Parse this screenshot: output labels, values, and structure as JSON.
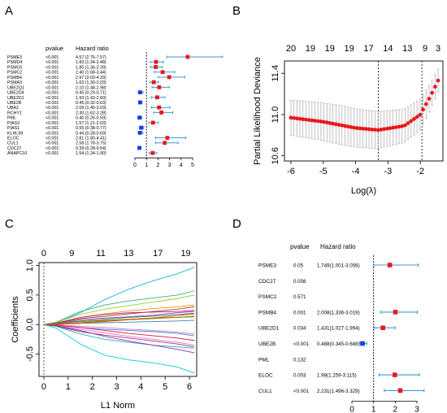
{
  "chart_data": [
    {
      "panel": "A",
      "type": "forest",
      "col_headers": [
        "pvalue",
        "Hazard ratio"
      ],
      "xticks": [
        "0",
        "1",
        "2",
        "3",
        "4",
        "5"
      ],
      "xlim": [
        0,
        5
      ],
      "reference_line": 1,
      "rows": [
        {
          "gene": "PSME3",
          "p": "<0.001",
          "hr_text": "4.57 (2.76-7.57)",
          "hr": 4.57,
          "lo": 2.76,
          "hi": 7.57
        },
        {
          "gene": "PSMD4",
          "p": "<0.001",
          "hr_text": "1.83 (1.34-2.48)",
          "hr": 1.83,
          "lo": 1.34,
          "hi": 2.48
        },
        {
          "gene": "PSMC6",
          "p": "<0.001",
          "hr_text": "1.80 (1.36-2.39)",
          "hr": 1.8,
          "lo": 1.36,
          "hi": 2.39
        },
        {
          "gene": "PSMC2",
          "p": "<0.001",
          "hr_text": "2.40 (1.68-3.44)",
          "hr": 2.4,
          "lo": 1.68,
          "hi": 3.44
        },
        {
          "gene": "PSMB4",
          "p": "<0.001",
          "hr_text": "2.97 (2.03-4.33)",
          "hr": 2.97,
          "lo": 2.03,
          "hi": 4.33
        },
        {
          "gene": "PSMA3",
          "p": "<0.001",
          "hr_text": "1.63 (1.30-2.03)",
          "hr": 1.63,
          "lo": 1.3,
          "hi": 2.03
        },
        {
          "gene": "UBE2Q1",
          "p": "<0.001",
          "hr_text": "2.10 (1.48-2.98)",
          "hr": 2.1,
          "lo": 1.48,
          "hi": 2.98
        },
        {
          "gene": "UBE2D4",
          "p": "<0.001",
          "hr_text": "0.45 (0.29-0.71)",
          "hr": 0.45,
          "lo": 0.29,
          "hi": 0.71
        },
        {
          "gene": "UBE2D1",
          "p": "<0.001",
          "hr_text": "1.93 (1.43-2.60)",
          "hr": 1.93,
          "lo": 1.43,
          "hi": 2.6
        },
        {
          "gene": "UBE2B",
          "p": "<0.001",
          "hr_text": "0.45 (0.32-0.63)",
          "hr": 0.45,
          "lo": 0.32,
          "hi": 0.63
        },
        {
          "gene": "UBA2",
          "p": "<0.001",
          "hr_text": "2.09 (1.45-3.03)",
          "hr": 2.09,
          "lo": 1.45,
          "hi": 3.03
        },
        {
          "gene": "RCHY1",
          "p": "<0.001",
          "hr_text": "2.30 (1.62-3.28)",
          "hr": 2.3,
          "lo": 1.62,
          "hi": 3.28
        },
        {
          "gene": "PML",
          "p": "<0.001",
          "hr_text": "0.40 (0.26-0.59)",
          "hr": 0.4,
          "lo": 0.26,
          "hi": 0.59
        },
        {
          "gene": "PIAS3",
          "p": "<0.001",
          "hr_text": "1.57 (1.21-2.03)",
          "hr": 1.57,
          "lo": 1.21,
          "hi": 2.03
        },
        {
          "gene": "PIAS1",
          "p": "<0.001",
          "hr_text": "0.55 (0.38-0.77)",
          "hr": 0.55,
          "lo": 0.38,
          "hi": 0.77
        },
        {
          "gene": "KLHL99",
          "p": "<0.001",
          "hr_text": "0.44 (0.28-0.69)",
          "hr": 0.44,
          "lo": 0.28,
          "hi": 0.69
        },
        {
          "gene": "ELOC",
          "p": "<0.001",
          "hr_text": "2.81 (1.80-4.41)",
          "hr": 2.81,
          "lo": 1.8,
          "hi": 4.41
        },
        {
          "gene": "CUL1",
          "p": "<0.001",
          "hr_text": "2.58 (1.78-3.75)",
          "hr": 2.58,
          "lo": 1.78,
          "hi": 3.75
        },
        {
          "gene": "CDC27",
          "p": "<0.001",
          "hr_text": "0.39 (0.28-0.54)",
          "hr": 0.39,
          "lo": 0.28,
          "hi": 0.54
        },
        {
          "gene": "ANAPC10",
          "p": "<0.001",
          "hr_text": "1.54 (1.24-1.90)",
          "hr": 1.54,
          "lo": 1.24,
          "hi": 1.9
        }
      ],
      "colors": {
        "risk": "#e8191f",
        "protective": "#1a3ce0",
        "ci": "#3a9ad9"
      }
    },
    {
      "panel": "B",
      "type": "scatter",
      "xlabel": "Log(λ)",
      "ylabel": "Partial Likelihood Deviance",
      "xlim": [
        -6.2,
        -1.3
      ],
      "ylim": [
        10.55,
        11.52
      ],
      "xticks": [
        "-6",
        "-5",
        "-4",
        "-3",
        "-2"
      ],
      "xtick_values": [
        -6,
        -5,
        -4,
        -3,
        -2
      ],
      "yticks": [
        "10.6",
        "11.0",
        "11.4"
      ],
      "ytick_values": [
        10.6,
        11.0,
        11.4
      ],
      "top_ticks": [
        "20",
        "19",
        "19",
        "19",
        "17",
        "14",
        "13",
        "9",
        "3"
      ],
      "top_tick_values": [
        -6,
        -5.4,
        -4.8,
        -4.2,
        -3.6,
        -3.0,
        -2.4,
        -1.85,
        -1.45
      ],
      "lambda_min": -3.3,
      "lambda_1se": -1.95,
      "curve": {
        "x_start": -6.0,
        "x_end": -1.45,
        "points": 50,
        "anchors": [
          [
            -6.0,
            10.97
          ],
          [
            -5.0,
            10.93
          ],
          [
            -4.0,
            10.87
          ],
          [
            -3.3,
            10.85
          ],
          [
            -2.5,
            10.89
          ],
          [
            -2.0,
            11.0
          ],
          [
            -1.7,
            11.17
          ],
          [
            -1.45,
            11.33
          ]
        ]
      },
      "errorbar": {
        "anchors": [
          [
            -6.0,
            0.34
          ],
          [
            -4.5,
            0.38
          ],
          [
            -3.3,
            0.36
          ],
          [
            -2.0,
            0.3
          ],
          [
            -1.45,
            0.22
          ]
        ]
      },
      "colors": {
        "point": "#e8191f",
        "bar": "#a9a9a9"
      }
    },
    {
      "panel": "C",
      "type": "line",
      "xlabel": "L1 Norm",
      "ylabel": "Coefficients",
      "xlim": [
        -0.2,
        6.3
      ],
      "ylim": [
        -0.88,
        1.05
      ],
      "xticks": [
        "0",
        "1",
        "2",
        "3",
        "4",
        "5",
        "6"
      ],
      "xtick_values": [
        0,
        1,
        2,
        3,
        4,
        5,
        6
      ],
      "yticks": [
        "-0.5",
        "0.0",
        "0.5",
        "1.0"
      ],
      "ytick_values": [
        -0.5,
        0,
        0.5,
        1.0
      ],
      "top_ticks": [
        "0",
        "9",
        "11",
        "13",
        "17",
        "19"
      ],
      "top_tick_values": [
        0,
        1.15,
        2.35,
        3.5,
        4.7,
        5.85
      ],
      "x_knots": [
        0,
        0.5,
        1.5,
        2.5,
        3.5,
        4.5,
        5.5,
        6.2
      ],
      "series": [
        {
          "color": "#1fb0d8",
          "values": [
            0,
            0.02,
            0.2,
            0.42,
            0.6,
            0.74,
            0.86,
            0.97
          ]
        },
        {
          "color": "#3cb371",
          "values": [
            0,
            0.04,
            0.22,
            0.33,
            0.4,
            0.45,
            0.5,
            0.57
          ]
        },
        {
          "color": "#9acd32",
          "values": [
            0,
            0.03,
            0.17,
            0.26,
            0.32,
            0.38,
            0.44,
            0.5
          ]
        },
        {
          "color": "#ff8c00",
          "values": [
            0,
            0.02,
            0.12,
            0.18,
            0.23,
            0.27,
            0.3,
            0.33
          ]
        },
        {
          "color": "#8b4513",
          "values": [
            0,
            0.02,
            0.1,
            0.14,
            0.18,
            0.22,
            0.26,
            0.3
          ]
        },
        {
          "color": "#c71585",
          "values": [
            0,
            0.02,
            0.12,
            0.17,
            0.2,
            0.21,
            0.22,
            0.24
          ]
        },
        {
          "color": "#9932cc",
          "values": [
            0,
            0.01,
            0.08,
            0.11,
            0.13,
            0.16,
            0.2,
            0.22
          ]
        },
        {
          "color": "#2e8b57",
          "values": [
            0,
            0.01,
            0.06,
            0.09,
            0.12,
            0.14,
            0.17,
            0.19
          ]
        },
        {
          "color": "#6b8e23",
          "values": [
            0,
            0,
            0.03,
            0.06,
            0.08,
            0.1,
            0.12,
            0.14
          ]
        },
        {
          "color": "#4682b4",
          "values": [
            0,
            0,
            0.02,
            0.03,
            0.04,
            0.05,
            0.06,
            0.07
          ]
        },
        {
          "color": "#ff69b4",
          "values": [
            0,
            -0.01,
            -0.03,
            -0.05,
            -0.08,
            -0.1,
            -0.13,
            -0.16
          ]
        },
        {
          "color": "#1e90ff",
          "values": [
            0,
            -0.01,
            -0.05,
            -0.08,
            -0.1,
            -0.12,
            -0.15,
            -0.19
          ]
        },
        {
          "color": "#da70d6",
          "values": [
            0,
            -0.02,
            -0.08,
            -0.14,
            -0.2,
            -0.25,
            -0.3,
            -0.35
          ]
        },
        {
          "color": "#b03060",
          "values": [
            0,
            -0.03,
            -0.12,
            -0.18,
            -0.23,
            -0.28,
            -0.33,
            -0.38
          ]
        },
        {
          "color": "#20b2aa",
          "values": [
            0,
            -0.03,
            -0.16,
            -0.25,
            -0.3,
            -0.35,
            -0.38,
            -0.4
          ]
        },
        {
          "color": "#8a2be2",
          "values": [
            0,
            -0.02,
            -0.1,
            -0.2,
            -0.28,
            -0.35,
            -0.42,
            -0.48
          ]
        },
        {
          "color": "#dc143c",
          "values": [
            0,
            -0.01,
            -0.05,
            -0.1,
            -0.15,
            -0.19,
            -0.23,
            -0.27
          ]
        },
        {
          "color": "#00ced1",
          "values": [
            0,
            -0.06,
            -0.33,
            -0.52,
            -0.6,
            -0.65,
            -0.72,
            -0.82
          ]
        },
        {
          "color": "#808000",
          "values": [
            0,
            0.01,
            0.05,
            0.07,
            0.09,
            0.11,
            0.12,
            0.13
          ]
        },
        {
          "color": "#ff4500",
          "values": [
            0,
            0,
            0.02,
            0.05,
            0.08,
            0.11,
            0.15,
            0.18
          ]
        }
      ]
    },
    {
      "panel": "D",
      "type": "forest",
      "col_headers": [
        "pvalue",
        "Hazard ratio"
      ],
      "xticks": [
        "0",
        "1",
        "2",
        "3"
      ],
      "xlim": [
        0,
        3.4
      ],
      "reference_line": 1,
      "rows": [
        {
          "gene": "PSME3",
          "p": "0.05",
          "hr_text": "1.749(1.001-3.056)",
          "hr": 1.749,
          "lo": 1.001,
          "hi": 3.056
        },
        {
          "gene": "CDC27",
          "p": "0.056",
          "hr_text": "",
          "hr": null,
          "lo": null,
          "hi": null
        },
        {
          "gene": "PSMC2",
          "p": "0.571",
          "hr_text": "",
          "hr": null,
          "lo": null,
          "hi": null
        },
        {
          "gene": "PSMB4",
          "p": "0.001",
          "hr_text": "2.008(1.336-3.019)",
          "hr": 2.008,
          "lo": 1.336,
          "hi": 3.019
        },
        {
          "gene": "UBE2D1",
          "p": "0.034",
          "hr_text": "1.431(1.027-1.994)",
          "hr": 1.431,
          "lo": 1.027,
          "hi": 1.994
        },
        {
          "gene": "UBE2B",
          "p": "<0.001",
          "hr_text": "0.488(0.345-0.688)",
          "hr": 0.488,
          "lo": 0.345,
          "hi": 0.688
        },
        {
          "gene": "PML",
          "p": "0.132",
          "hr_text": "",
          "hr": null,
          "lo": null,
          "hi": null
        },
        {
          "gene": "ELOC",
          "p": "0.003",
          "hr_text": "1.98(1.259-3.115)",
          "hr": 1.98,
          "lo": 1.259,
          "hi": 3.115
        },
        {
          "gene": "CUL1",
          "p": "<0.001",
          "hr_text": "2.231(1.496-3.329)",
          "hr": 2.231,
          "lo": 1.496,
          "hi": 3.329
        }
      ],
      "colors": {
        "risk": "#e8191f",
        "protective": "#1a3ce0",
        "ci": "#3a9ad9"
      }
    }
  ],
  "panel_labels": [
    "A",
    "B",
    "C",
    "D"
  ]
}
